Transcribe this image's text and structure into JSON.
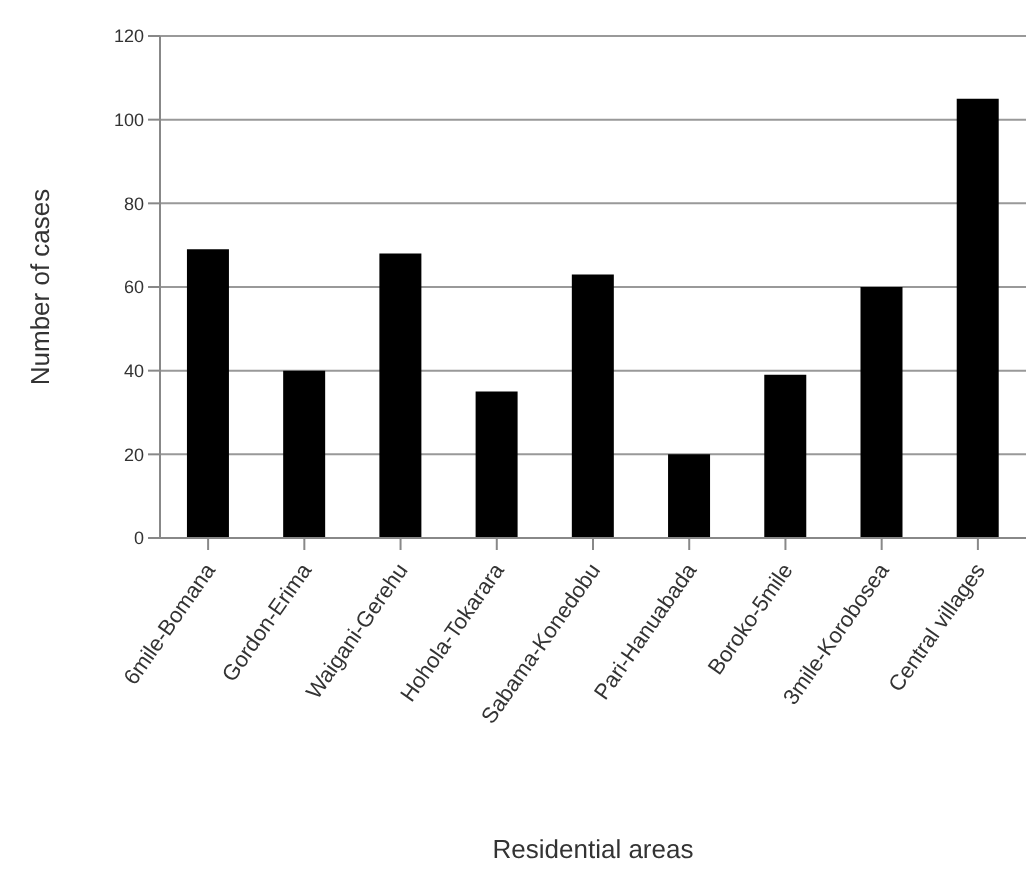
{
  "chart_data": {
    "type": "bar",
    "xlabel": "Residential areas",
    "ylabel": "Number of cases",
    "categories": [
      "6mile-Bomana",
      "Gordon-Erima",
      "Waigani-Gerehu",
      "Hohola-Tokarara",
      "Sabama-Konedobu",
      "Pari-Hanuabada",
      "Boroko-5mile",
      "3mile-Korobosea",
      "Central villages"
    ],
    "values": [
      69,
      40,
      68,
      35,
      63,
      20,
      39,
      60,
      105
    ],
    "color": "#000000",
    "ylim": [
      0,
      120
    ],
    "yticks": [
      0,
      20,
      40,
      60,
      80,
      100,
      120
    ],
    "grid": "y",
    "legend": false
  }
}
